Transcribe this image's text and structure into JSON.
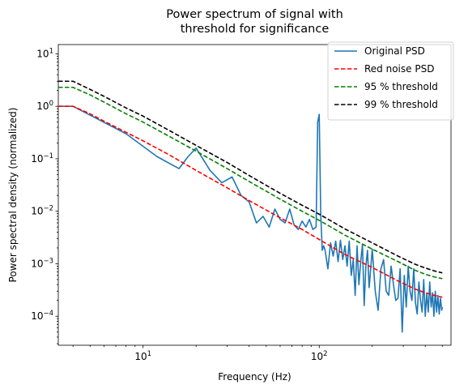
{
  "chart_data": {
    "type": "line",
    "title": [
      "Power spectrum of signal with",
      "threshold for significance"
    ],
    "xlabel": "Frequency (Hz)",
    "ylabel": "Power spectral density (normalized)",
    "xscale": "log",
    "yscale": "log",
    "xlim": [
      3.3,
      560
    ],
    "ylim": [
      2.8e-05,
      15
    ],
    "grid": false,
    "legend_position": "top-right",
    "xticks": [
      {
        "value": 10,
        "label": "10",
        "exp": "1"
      },
      {
        "value": 100,
        "label": "10",
        "exp": "2"
      }
    ],
    "yticks": [
      {
        "value": 0.0001,
        "label": "10",
        "exp": "−4"
      },
      {
        "value": 0.001,
        "label": "10",
        "exp": "−3"
      },
      {
        "value": 0.01,
        "label": "10",
        "exp": "−2"
      },
      {
        "value": 0.1,
        "label": "10",
        "exp": "−1"
      },
      {
        "value": 1,
        "label": "10",
        "exp": "0"
      },
      {
        "value": 10,
        "label": "10",
        "exp": "1"
      }
    ],
    "series": [
      {
        "name": "Original PSD",
        "color": "#1f77b4",
        "style": "solid",
        "x": [
          3.3,
          4,
          8,
          12,
          16,
          18,
          20,
          24,
          28,
          32,
          36,
          40,
          44,
          48,
          52,
          56,
          60,
          64,
          68,
          72,
          76,
          80,
          84,
          88,
          92,
          96,
          98,
          100,
          102,
          104,
          106,
          108,
          112,
          116,
          120,
          124,
          128,
          132,
          136,
          140,
          144,
          148,
          152,
          156,
          160,
          164,
          168,
          172,
          176,
          180,
          184,
          188,
          192,
          196,
          200,
          208,
          216,
          224,
          232,
          240,
          248,
          256,
          264,
          272,
          280,
          288,
          296,
          304,
          312,
          320,
          328,
          336,
          344,
          352,
          360,
          368,
          376,
          384,
          392,
          400,
          408,
          416,
          424,
          432,
          440,
          448,
          456,
          464,
          472,
          480,
          488,
          496,
          500
        ],
        "y": [
          1,
          1,
          0.3,
          0.11,
          0.065,
          0.11,
          0.16,
          0.06,
          0.035,
          0.045,
          0.02,
          0.015,
          0.006,
          0.008,
          0.005,
          0.011,
          0.007,
          0.006,
          0.011,
          0.0055,
          0.0045,
          0.0065,
          0.005,
          0.007,
          0.0045,
          0.005,
          0.5,
          0.7,
          0.009,
          0.0018,
          0.0022,
          0.0018,
          0.0008,
          0.0025,
          0.0014,
          0.0027,
          0.0011,
          0.0028,
          0.0012,
          0.0022,
          0.0009,
          0.0027,
          0.0006,
          0.0012,
          0.00025,
          0.0022,
          0.0004,
          0.0011,
          0.0023,
          0.00016,
          0.0009,
          0.0018,
          0.00035,
          0.0008,
          0.0019,
          0.0003,
          0.00013,
          0.0008,
          0.0012,
          0.0003,
          0.00025,
          0.0009,
          0.0004,
          0.0002,
          0.00022,
          0.0008,
          5e-05,
          0.0006,
          0.00015,
          0.0009,
          0.0003,
          0.0002,
          0.0008,
          0.00018,
          0.00011,
          0.00045,
          0.0002,
          0.00012,
          0.0005,
          0.0001,
          0.00028,
          0.00012,
          0.00045,
          0.00015,
          0.00028,
          0.0001,
          0.0003,
          0.00012,
          0.00025,
          0.00011,
          0.00022,
          0.00013,
          0.00015
        ]
      },
      {
        "name": "Red noise PSD",
        "color": "#ff0000",
        "style": "dashed",
        "x": [
          3.3,
          4,
          5,
          6,
          8,
          10,
          14,
          20,
          30,
          40,
          60,
          80,
          100,
          140,
          200,
          280,
          350,
          400,
          450,
          500
        ],
        "y": [
          1,
          1,
          0.72,
          0.52,
          0.32,
          0.22,
          0.12,
          0.06,
          0.028,
          0.016,
          0.0075,
          0.0045,
          0.0029,
          0.0015,
          0.00085,
          0.00047,
          0.00033,
          0.00028,
          0.00025,
          0.00023
        ]
      },
      {
        "name": "95 % threshold",
        "color": "#008000",
        "style": "dashed",
        "x": [
          3.3,
          4,
          5,
          6,
          8,
          10,
          14,
          20,
          30,
          40,
          60,
          80,
          100,
          140,
          200,
          280,
          350,
          400,
          450,
          500
        ],
        "y": [
          2.3,
          2.3,
          1.65,
          1.2,
          0.72,
          0.5,
          0.27,
          0.14,
          0.065,
          0.037,
          0.017,
          0.01,
          0.0067,
          0.0035,
          0.0019,
          0.0011,
          0.00075,
          0.00063,
          0.00056,
          0.00052
        ]
      },
      {
        "name": "99 % threshold",
        "color": "#000000",
        "style": "dashed",
        "x": [
          3.3,
          4,
          5,
          6,
          8,
          10,
          14,
          20,
          30,
          40,
          60,
          80,
          100,
          140,
          200,
          280,
          350,
          400,
          450,
          500
        ],
        "y": [
          3,
          3,
          2.1,
          1.55,
          0.93,
          0.65,
          0.35,
          0.18,
          0.085,
          0.048,
          0.022,
          0.013,
          0.0088,
          0.0046,
          0.0025,
          0.0014,
          0.00098,
          0.00083,
          0.00073,
          0.00067
        ]
      }
    ]
  }
}
